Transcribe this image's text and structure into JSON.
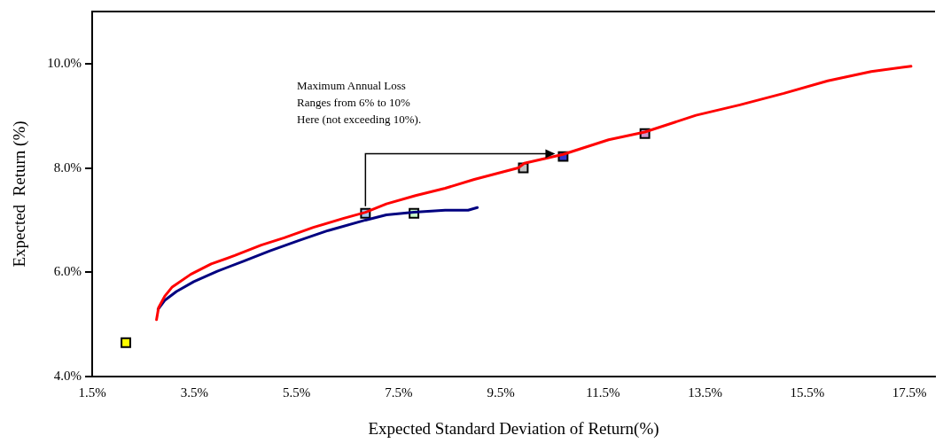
{
  "chart_data": {
    "type": "line",
    "xlabel": "Expected Standard Deviation of Return(%)",
    "ylabel": "Expected  Return (%)",
    "annotations": [
      "Maximum Annual Loss\nRanges from 6% to 10%\nHere (not exceeding 10%)."
    ],
    "xlim": [
      1.5,
      18
    ],
    "ylim": [
      4,
      11
    ],
    "xticks": [
      {
        "value": 1.5,
        "label": "1.5%"
      },
      {
        "value": 3.5,
        "label": "3.5%"
      },
      {
        "value": 5.5,
        "label": "5.5%"
      },
      {
        "value": 7.5,
        "label": "7.5%"
      },
      {
        "value": 9.5,
        "label": "9.5%"
      },
      {
        "value": 11.5,
        "label": "11.5%"
      },
      {
        "value": 13.5,
        "label": "13.5%"
      },
      {
        "value": 15.5,
        "label": "15.5%"
      },
      {
        "value": 17.5,
        "label": "17.5%"
      }
    ],
    "yticks": [
      {
        "value": 4,
        "label": "4.0%"
      },
      {
        "value": 6,
        "label": "6.0%"
      },
      {
        "value": 8,
        "label": "8.0%"
      },
      {
        "value": 10,
        "label": "10.0%"
      }
    ],
    "grid": false,
    "legend": false,
    "line_style": "solid",
    "series": [
      {
        "type": "line",
        "marker": "none",
        "color": "#ff0000",
        "x": [
          2.76,
          2.8,
          2.92,
          3.06,
          3.43,
          3.83,
          4.29,
          4.81,
          5.26,
          5.83,
          6.41,
          6.85,
          7.26,
          7.83,
          8.41,
          8.98,
          9.84,
          9.96,
          10.72,
          11.61,
          12.32,
          13.32,
          14.18,
          15.04,
          15.9,
          16.75,
          17.53
        ],
        "values": [
          5.09,
          5.32,
          5.54,
          5.71,
          5.96,
          6.16,
          6.32,
          6.52,
          6.66,
          6.86,
          7.03,
          7.15,
          7.31,
          7.47,
          7.61,
          7.78,
          8.0,
          8.09,
          8.26,
          8.54,
          8.69,
          9.01,
          9.21,
          9.43,
          9.67,
          9.85,
          9.95
        ]
      },
      {
        "type": "line",
        "marker": "none",
        "color": "#000080",
        "x": [
          2.79,
          2.92,
          3.15,
          3.49,
          3.95,
          4.46,
          4.98,
          5.55,
          6.12,
          6.85,
          7.26,
          7.8,
          8.41,
          8.86,
          9.04
        ],
        "values": [
          5.29,
          5.46,
          5.63,
          5.82,
          6.02,
          6.21,
          6.41,
          6.61,
          6.8,
          7.0,
          7.1,
          7.15,
          7.19,
          7.19,
          7.24
        ]
      },
      {
        "type": "scatter",
        "marker": "square",
        "color": "#ffff00",
        "x": [
          2.16
        ],
        "values": [
          4.65
        ]
      },
      {
        "type": "scatter",
        "marker": "square",
        "color": "#a6caf0",
        "x": [
          6.85
        ],
        "values": [
          7.13
        ]
      },
      {
        "type": "scatter",
        "marker": "square",
        "color": "#ccffcc",
        "x": [
          7.8
        ],
        "values": [
          7.13
        ]
      },
      {
        "type": "scatter",
        "marker": "square",
        "color": "#c0c0c0",
        "x": [
          9.94
        ],
        "values": [
          8.0
        ]
      },
      {
        "type": "scatter",
        "marker": "square",
        "color": "#3333cc",
        "x": [
          10.72
        ],
        "values": [
          8.22
        ]
      },
      {
        "type": "scatter",
        "marker": "square",
        "color": "#cc99cc",
        "x": [
          12.32
        ],
        "values": [
          8.66
        ]
      }
    ]
  }
}
